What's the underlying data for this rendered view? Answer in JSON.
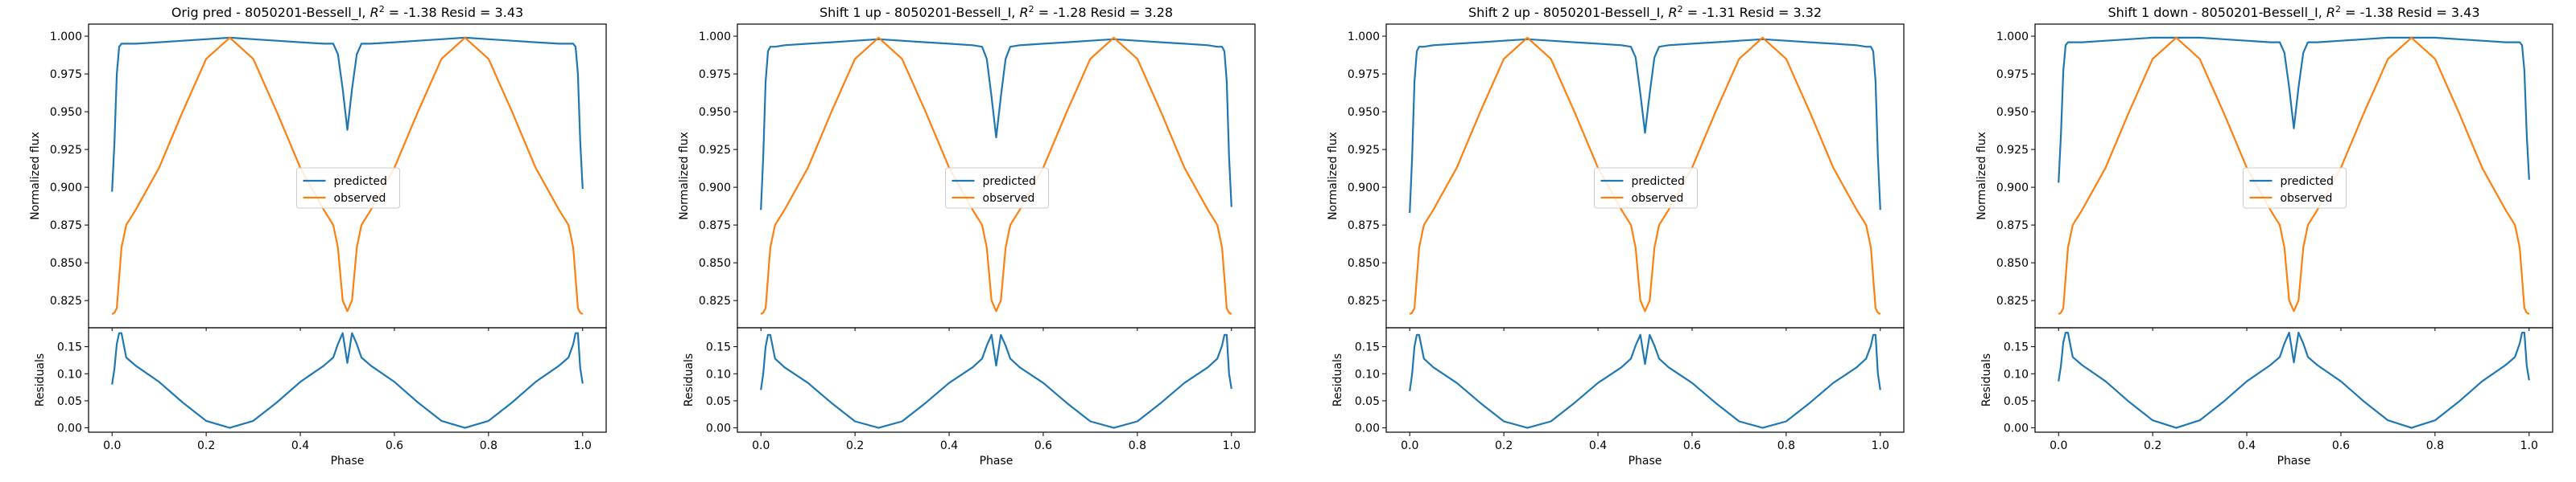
{
  "panels": [
    {
      "title_prefix": "Orig pred - 8050201-Bessell_I, ",
      "r2": "-1.38",
      "resid": "3.43"
    },
    {
      "title_prefix": "Shift 1 up - 8050201-Bessell_I, ",
      "r2": "-1.28",
      "resid": "3.28"
    },
    {
      "title_prefix": "Shift 2 up - 8050201-Bessell_I, ",
      "r2": "-1.31",
      "resid": "3.32"
    },
    {
      "title_prefix": "Shift 1 down - 8050201-Bessell_I, ",
      "r2": "-1.38",
      "resid": "3.43"
    }
  ],
  "labels": {
    "r2_symbol": "R",
    "r2_superscript": "2",
    "equals": " = ",
    "resid_word": " Resid = "
  },
  "colors": {
    "predicted": "#1f77b4",
    "observed": "#ff7f0e"
  },
  "chart_data": [
    {
      "type": "line",
      "title": "Orig pred - 8050201-Bessell_I, R^2 = -1.38 Resid = 3.43",
      "xlabel": "Phase",
      "ylabel_top": "Normalized flux",
      "ylabel_bottom": "Residuals",
      "legend": {
        "placement": "center",
        "entries": [
          "predicted",
          "observed"
        ]
      },
      "grid": false,
      "xlim": [
        -0.05,
        1.05
      ],
      "xticks": [
        "0.0",
        "0.2",
        "0.4",
        "0.6",
        "0.8",
        "1.0"
      ],
      "ylim_top": [
        0.807,
        1.008
      ],
      "yticks_top": [
        "0.825",
        "0.850",
        "0.875",
        "0.900",
        "0.925",
        "0.950",
        "0.975",
        "1.000"
      ],
      "ylim_bottom": [
        -0.008,
        0.185
      ],
      "yticks_bottom": [
        "0.00",
        "0.05",
        "0.10",
        "0.15"
      ],
      "x": [
        0.0,
        0.005,
        0.01,
        0.015,
        0.02,
        0.03,
        0.05,
        0.1,
        0.15,
        0.2,
        0.25,
        0.3,
        0.35,
        0.4,
        0.45,
        0.47,
        0.48,
        0.49,
        0.5,
        0.51,
        0.52,
        0.53,
        0.55,
        0.6,
        0.65,
        0.7,
        0.75,
        0.8,
        0.85,
        0.9,
        0.95,
        0.97,
        0.98,
        0.985,
        0.99,
        0.995,
        1.0
      ],
      "series": [
        {
          "name": "predicted",
          "values": [
            0.897,
            0.93,
            0.975,
            0.993,
            0.995,
            0.995,
            0.995,
            0.996,
            0.997,
            0.998,
            0.999,
            0.998,
            0.997,
            0.996,
            0.995,
            0.995,
            0.988,
            0.965,
            0.938,
            0.965,
            0.988,
            0.995,
            0.995,
            0.996,
            0.997,
            0.998,
            0.999,
            0.998,
            0.997,
            0.996,
            0.995,
            0.995,
            0.995,
            0.993,
            0.975,
            0.93,
            0.899
          ]
        },
        {
          "name": "observed",
          "values": [
            0.816,
            0.817,
            0.82,
            0.84,
            0.86,
            0.875,
            0.885,
            0.913,
            0.95,
            0.985,
            0.999,
            0.985,
            0.95,
            0.913,
            0.885,
            0.875,
            0.86,
            0.825,
            0.818,
            0.825,
            0.86,
            0.875,
            0.885,
            0.913,
            0.95,
            0.985,
            0.999,
            0.985,
            0.95,
            0.913,
            0.885,
            0.875,
            0.86,
            0.84,
            0.82,
            0.817,
            0.816
          ]
        },
        {
          "name": "residuals",
          "values": [
            0.08,
            0.11,
            0.155,
            0.175,
            0.175,
            0.13,
            0.115,
            0.085,
            0.047,
            0.013,
            0.0,
            0.013,
            0.047,
            0.085,
            0.115,
            0.13,
            0.155,
            0.175,
            0.12,
            0.175,
            0.155,
            0.13,
            0.115,
            0.085,
            0.047,
            0.013,
            0.0,
            0.013,
            0.047,
            0.085,
            0.115,
            0.13,
            0.155,
            0.175,
            0.175,
            0.11,
            0.082
          ]
        }
      ]
    },
    {
      "type": "line",
      "title": "Shift 1 up - 8050201-Bessell_I, R^2 = -1.28 Resid = 3.28",
      "xlabel": "Phase",
      "ylabel_top": "Normalized flux",
      "ylabel_bottom": "Residuals",
      "legend": {
        "placement": "center",
        "entries": [
          "predicted",
          "observed"
        ]
      },
      "grid": false,
      "xlim": [
        -0.05,
        1.05
      ],
      "xticks": [
        "0.0",
        "0.2",
        "0.4",
        "0.6",
        "0.8",
        "1.0"
      ],
      "ylim_top": [
        0.807,
        1.008
      ],
      "yticks_top": [
        "0.825",
        "0.850",
        "0.875",
        "0.900",
        "0.925",
        "0.950",
        "0.975",
        "1.000"
      ],
      "ylim_bottom": [
        -0.008,
        0.185
      ],
      "yticks_bottom": [
        "0.00",
        "0.05",
        "0.10",
        "0.15"
      ],
      "x": [
        0.0,
        0.005,
        0.01,
        0.015,
        0.02,
        0.03,
        0.05,
        0.1,
        0.15,
        0.2,
        0.25,
        0.3,
        0.35,
        0.4,
        0.45,
        0.47,
        0.48,
        0.49,
        0.5,
        0.51,
        0.52,
        0.53,
        0.55,
        0.6,
        0.65,
        0.7,
        0.75,
        0.8,
        0.85,
        0.9,
        0.95,
        0.97,
        0.98,
        0.985,
        0.99,
        0.995,
        1.0
      ],
      "series": [
        {
          "name": "predicted",
          "values": [
            0.885,
            0.92,
            0.97,
            0.99,
            0.993,
            0.993,
            0.994,
            0.995,
            0.996,
            0.997,
            0.998,
            0.997,
            0.996,
            0.995,
            0.994,
            0.993,
            0.985,
            0.96,
            0.933,
            0.96,
            0.985,
            0.993,
            0.994,
            0.995,
            0.996,
            0.997,
            0.998,
            0.997,
            0.996,
            0.995,
            0.994,
            0.993,
            0.993,
            0.99,
            0.97,
            0.92,
            0.887
          ]
        },
        {
          "name": "observed",
          "values": [
            0.816,
            0.817,
            0.82,
            0.84,
            0.86,
            0.875,
            0.885,
            0.913,
            0.95,
            0.985,
            0.999,
            0.985,
            0.95,
            0.913,
            0.885,
            0.875,
            0.86,
            0.825,
            0.818,
            0.825,
            0.86,
            0.875,
            0.885,
            0.913,
            0.95,
            0.985,
            0.999,
            0.985,
            0.95,
            0.913,
            0.885,
            0.875,
            0.86,
            0.84,
            0.82,
            0.817,
            0.816
          ]
        },
        {
          "name": "residuals",
          "values": [
            0.07,
            0.1,
            0.15,
            0.172,
            0.172,
            0.128,
            0.112,
            0.083,
            0.046,
            0.012,
            0.0,
            0.012,
            0.046,
            0.083,
            0.112,
            0.128,
            0.152,
            0.172,
            0.115,
            0.172,
            0.152,
            0.128,
            0.112,
            0.083,
            0.046,
            0.012,
            0.0,
            0.012,
            0.046,
            0.083,
            0.112,
            0.128,
            0.152,
            0.172,
            0.172,
            0.1,
            0.072
          ]
        }
      ]
    },
    {
      "type": "line",
      "title": "Shift 2 up - 8050201-Bessell_I, R^2 = -1.31 Resid = 3.32",
      "xlabel": "Phase",
      "ylabel_top": "Normalized flux",
      "ylabel_bottom": "Residuals",
      "legend": {
        "placement": "center",
        "entries": [
          "predicted",
          "observed"
        ]
      },
      "grid": false,
      "xlim": [
        -0.05,
        1.05
      ],
      "xticks": [
        "0.0",
        "0.2",
        "0.4",
        "0.6",
        "0.8",
        "1.0"
      ],
      "ylim_top": [
        0.807,
        1.008
      ],
      "yticks_top": [
        "0.825",
        "0.850",
        "0.875",
        "0.900",
        "0.925",
        "0.950",
        "0.975",
        "1.000"
      ],
      "ylim_bottom": [
        -0.008,
        0.185
      ],
      "yticks_bottom": [
        "0.00",
        "0.05",
        "0.10",
        "0.15"
      ],
      "x": [
        0.0,
        0.005,
        0.01,
        0.015,
        0.02,
        0.03,
        0.05,
        0.1,
        0.15,
        0.2,
        0.25,
        0.3,
        0.35,
        0.4,
        0.45,
        0.47,
        0.48,
        0.49,
        0.5,
        0.51,
        0.52,
        0.53,
        0.55,
        0.6,
        0.65,
        0.7,
        0.75,
        0.8,
        0.85,
        0.9,
        0.95,
        0.97,
        0.98,
        0.985,
        0.99,
        0.995,
        1.0
      ],
      "series": [
        {
          "name": "predicted",
          "values": [
            0.883,
            0.92,
            0.97,
            0.99,
            0.993,
            0.993,
            0.994,
            0.995,
            0.996,
            0.997,
            0.998,
            0.997,
            0.996,
            0.995,
            0.994,
            0.993,
            0.986,
            0.962,
            0.936,
            0.962,
            0.986,
            0.993,
            0.994,
            0.995,
            0.996,
            0.997,
            0.998,
            0.997,
            0.996,
            0.995,
            0.994,
            0.993,
            0.993,
            0.99,
            0.97,
            0.92,
            0.885
          ]
        },
        {
          "name": "observed",
          "values": [
            0.816,
            0.817,
            0.82,
            0.84,
            0.86,
            0.875,
            0.885,
            0.913,
            0.95,
            0.985,
            0.999,
            0.985,
            0.95,
            0.913,
            0.885,
            0.875,
            0.86,
            0.825,
            0.818,
            0.825,
            0.86,
            0.875,
            0.885,
            0.913,
            0.95,
            0.985,
            0.999,
            0.985,
            0.95,
            0.913,
            0.885,
            0.875,
            0.86,
            0.84,
            0.82,
            0.817,
            0.816
          ]
        },
        {
          "name": "residuals",
          "values": [
            0.068,
            0.1,
            0.15,
            0.172,
            0.172,
            0.128,
            0.112,
            0.083,
            0.046,
            0.012,
            0.0,
            0.012,
            0.046,
            0.083,
            0.112,
            0.128,
            0.152,
            0.172,
            0.118,
            0.172,
            0.152,
            0.128,
            0.112,
            0.083,
            0.046,
            0.012,
            0.0,
            0.012,
            0.046,
            0.083,
            0.112,
            0.128,
            0.152,
            0.172,
            0.172,
            0.1,
            0.07
          ]
        }
      ]
    },
    {
      "type": "line",
      "title": "Shift 1 down - 8050201-Bessell_I, R^2 = -1.38 Resid = 3.43",
      "xlabel": "Phase",
      "ylabel_top": "Normalized flux",
      "ylabel_bottom": "Residuals",
      "legend": {
        "placement": "center",
        "entries": [
          "predicted",
          "observed"
        ]
      },
      "grid": false,
      "xlim": [
        -0.05,
        1.05
      ],
      "xticks": [
        "0.0",
        "0.2",
        "0.4",
        "0.6",
        "0.8",
        "1.0"
      ],
      "ylim_top": [
        0.807,
        1.008
      ],
      "yticks_top": [
        "0.825",
        "0.850",
        "0.875",
        "0.900",
        "0.925",
        "0.950",
        "0.975",
        "1.000"
      ],
      "ylim_bottom": [
        -0.008,
        0.185
      ],
      "yticks_bottom": [
        "0.00",
        "0.05",
        "0.10",
        "0.15"
      ],
      "x": [
        0.0,
        0.005,
        0.01,
        0.015,
        0.02,
        0.03,
        0.05,
        0.1,
        0.15,
        0.2,
        0.25,
        0.3,
        0.35,
        0.4,
        0.45,
        0.47,
        0.48,
        0.49,
        0.5,
        0.51,
        0.52,
        0.53,
        0.55,
        0.6,
        0.65,
        0.7,
        0.75,
        0.8,
        0.85,
        0.9,
        0.95,
        0.97,
        0.98,
        0.985,
        0.99,
        0.995,
        1.0
      ],
      "series": [
        {
          "name": "predicted",
          "values": [
            0.903,
            0.935,
            0.977,
            0.994,
            0.996,
            0.996,
            0.996,
            0.997,
            0.998,
            0.999,
            0.999,
            0.999,
            0.998,
            0.997,
            0.996,
            0.996,
            0.989,
            0.966,
            0.939,
            0.966,
            0.989,
            0.996,
            0.996,
            0.997,
            0.998,
            0.999,
            0.999,
            0.999,
            0.998,
            0.997,
            0.996,
            0.996,
            0.996,
            0.994,
            0.977,
            0.935,
            0.905
          ]
        },
        {
          "name": "observed",
          "values": [
            0.816,
            0.817,
            0.82,
            0.84,
            0.86,
            0.875,
            0.885,
            0.913,
            0.95,
            0.985,
            0.999,
            0.985,
            0.95,
            0.913,
            0.885,
            0.875,
            0.86,
            0.825,
            0.818,
            0.825,
            0.86,
            0.875,
            0.885,
            0.913,
            0.95,
            0.985,
            0.999,
            0.985,
            0.95,
            0.913,
            0.885,
            0.875,
            0.86,
            0.84,
            0.82,
            0.817,
            0.816
          ]
        },
        {
          "name": "residuals",
          "values": [
            0.086,
            0.115,
            0.158,
            0.176,
            0.176,
            0.131,
            0.116,
            0.086,
            0.048,
            0.014,
            0.0,
            0.014,
            0.048,
            0.086,
            0.116,
            0.131,
            0.156,
            0.176,
            0.121,
            0.176,
            0.156,
            0.131,
            0.116,
            0.086,
            0.048,
            0.014,
            0.0,
            0.014,
            0.048,
            0.086,
            0.116,
            0.131,
            0.156,
            0.176,
            0.176,
            0.115,
            0.088
          ]
        }
      ]
    }
  ]
}
